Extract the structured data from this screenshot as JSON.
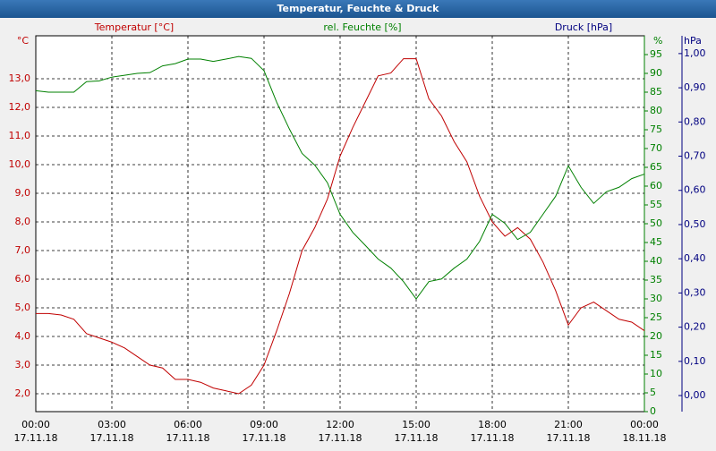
{
  "chart_data": {
    "type": "line",
    "title": "Temperatur, Feuchte & Druck",
    "x": [
      0,
      0.5,
      1,
      1.5,
      2,
      2.5,
      3,
      3.5,
      4,
      4.5,
      5,
      5.5,
      6,
      6.5,
      7,
      7.5,
      8,
      8.5,
      9,
      9.5,
      10,
      10.5,
      11,
      11.5,
      12,
      12.5,
      13,
      13.5,
      14,
      14.5,
      15,
      15.5,
      16,
      16.5,
      17,
      17.5,
      18,
      18.5,
      19,
      19.5,
      20,
      20.5,
      21,
      21.5,
      22,
      22.5,
      23,
      23.5,
      24
    ],
    "xlim": [
      0,
      24
    ],
    "xticks": [
      {
        "value": 0,
        "label": "00:00"
      },
      {
        "value": 3,
        "label": "03:00"
      },
      {
        "value": 6,
        "label": "06:00"
      },
      {
        "value": 9,
        "label": "09:00"
      },
      {
        "value": 12,
        "label": "12:00"
      },
      {
        "value": 15,
        "label": "15:00"
      },
      {
        "value": 18,
        "label": "18:00"
      },
      {
        "value": 21,
        "label": "21:00"
      },
      {
        "value": 24,
        "label": "00:00"
      }
    ],
    "xtick_dates": [
      "17.11.18",
      "17.11.18",
      "17.11.18",
      "17.11.18",
      "17.11.18",
      "17.11.18",
      "17.11.18",
      "17.11.18",
      "18.11.18"
    ],
    "ylabel": "Temperatur [°C]",
    "yunit": "°C",
    "ylim": [
      1.375,
      14.5
    ],
    "yticks": [
      {
        "value": 2,
        "label": "2,0"
      },
      {
        "value": 3,
        "label": "3,0"
      },
      {
        "value": 4,
        "label": "4,0"
      },
      {
        "value": 5,
        "label": "5,0"
      },
      {
        "value": 6,
        "label": "6,0"
      },
      {
        "value": 7,
        "label": "7,0"
      },
      {
        "value": 8,
        "label": "8,0"
      },
      {
        "value": 9,
        "label": "9,0"
      },
      {
        "value": 10,
        "label": "10,0"
      },
      {
        "value": 11,
        "label": "11,0"
      },
      {
        "value": 12,
        "label": "12,0"
      },
      {
        "value": 13,
        "label": "13,0"
      }
    ],
    "y2label": "rel. Feuchte [%]",
    "y2unit": "%",
    "y2lim": [
      0,
      100
    ],
    "y2ticks": [
      0,
      5,
      10,
      15,
      20,
      25,
      30,
      35,
      40,
      45,
      50,
      55,
      60,
      65,
      70,
      75,
      80,
      85,
      90,
      95
    ],
    "y3label": "Druck [hPa]",
    "y3unit": "hPa",
    "y3lim": [
      -0.047,
      1.052
    ],
    "y3ticks": [
      {
        "value": 0,
        "label": "0,00"
      },
      {
        "value": 0.1,
        "label": "0,10"
      },
      {
        "value": 0.2,
        "label": "0,20"
      },
      {
        "value": 0.3,
        "label": "0,30"
      },
      {
        "value": 0.4,
        "label": "0,40"
      },
      {
        "value": 0.5,
        "label": "0,50"
      },
      {
        "value": 0.6,
        "label": "0,60"
      },
      {
        "value": 0.7,
        "label": "0,70"
      },
      {
        "value": 0.8,
        "label": "0,80"
      },
      {
        "value": 0.9,
        "label": "0,90"
      },
      {
        "value": 1,
        "label": "1,00"
      }
    ],
    "grid": true,
    "series": [
      {
        "name": "Temperatur [°C]",
        "color": "#c00000",
        "axis": "y",
        "values": [
          4.8,
          4.8,
          4.75,
          4.6,
          4.1,
          3.95,
          3.8,
          3.6,
          3.3,
          3.0,
          2.9,
          2.5,
          2.5,
          2.4,
          2.2,
          2.1,
          2.0,
          2.3,
          3.0,
          4.2,
          5.5,
          7.0,
          7.8,
          8.8,
          10.3,
          11.3,
          12.2,
          13.1,
          13.2,
          13.7,
          13.7,
          12.3,
          11.7,
          10.8,
          10.1,
          8.9,
          8.0,
          7.5,
          7.8,
          7.4,
          6.6,
          5.6,
          4.4,
          5.0,
          5.2,
          4.9,
          4.6,
          4.5,
          4.2
        ]
      },
      {
        "name": "rel. Feuchte [%]",
        "color": "#008000",
        "axis": "y2",
        "values": [
          85.4,
          85,
          85,
          85,
          87.8,
          88,
          89,
          89.5,
          90,
          90.2,
          92,
          92.6,
          93.8,
          93.8,
          93.2,
          93.8,
          94.5,
          94,
          90.7,
          82.3,
          75.2,
          68.7,
          65.6,
          60.9,
          52.5,
          47.7,
          44.2,
          40.6,
          38.2,
          34.6,
          30,
          34.6,
          35.3,
          38.2,
          40.6,
          45.3,
          52.5,
          50.1,
          45.8,
          47.7,
          52.5,
          57.3,
          65.4,
          59.7,
          55.4,
          58.5,
          59.7,
          62,
          63.2
        ]
      }
    ]
  }
}
